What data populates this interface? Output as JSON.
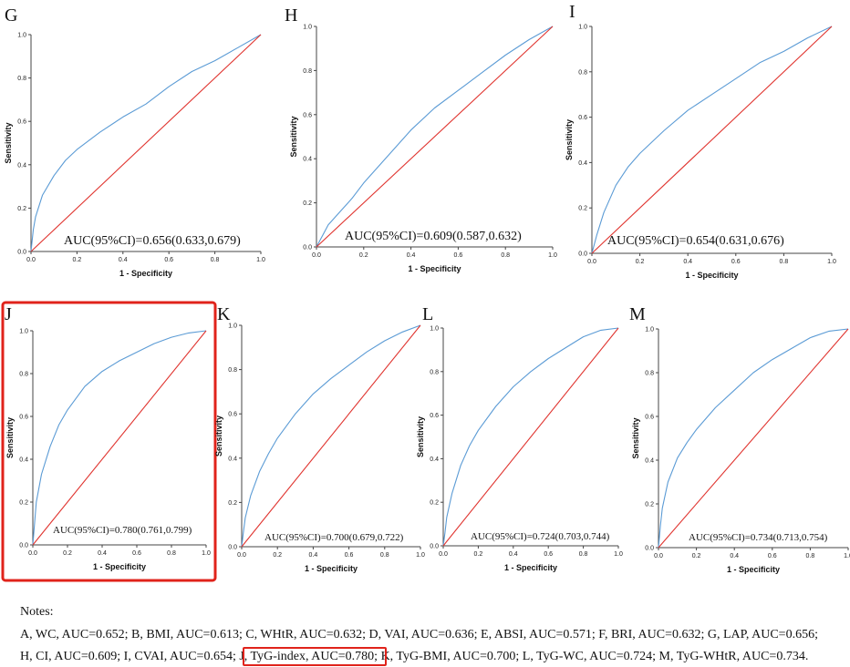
{
  "highlight_color": "#e0231b",
  "roc_color": "#5b9bd5",
  "ref_color": "#e0342f",
  "chart_data": [
    {
      "type": "line",
      "panel": "G",
      "xlabel": "1 - Specificity",
      "ylabel": "Sensitivity",
      "xlim": [
        0,
        1
      ],
      "ylim": [
        0,
        1
      ],
      "xticks": [
        "0.0",
        "0.2",
        "0.4",
        "0.6",
        "0.8",
        "1.0"
      ],
      "yticks": [
        "0.0",
        "0.2",
        "0.4",
        "0.6",
        "0.8",
        "1.0"
      ],
      "annotation": "AUC(95%CI)=0.656(0.633,0.679)",
      "auc": 0.656,
      "highlighted": false,
      "series": [
        {
          "x": [
            0,
            0.01,
            0.02,
            0.05,
            0.1,
            0.15,
            0.2,
            0.3,
            0.4,
            0.5,
            0.6,
            0.7,
            0.8,
            0.9,
            1
          ],
          "y": [
            0,
            0.1,
            0.16,
            0.26,
            0.35,
            0.42,
            0.47,
            0.55,
            0.62,
            0.68,
            0.76,
            0.83,
            0.88,
            0.94,
            1
          ]
        },
        {
          "x": [
            0,
            1
          ],
          "y": [
            0,
            1
          ]
        }
      ]
    },
    {
      "type": "line",
      "panel": "H",
      "xlabel": "1 - Specificity",
      "ylabel": "Sensitivity",
      "xlim": [
        0,
        1
      ],
      "ylim": [
        0,
        1
      ],
      "xticks": [
        "0.0",
        "0.2",
        "0.4",
        "0.6",
        "0.8",
        "1.0"
      ],
      "yticks": [
        "0.0",
        "0.2",
        "0.4",
        "0.6",
        "0.8",
        "1.0"
      ],
      "annotation": "AUC(95%CI)=0.609(0.587,0.632)",
      "auc": 0.609,
      "highlighted": false,
      "series": [
        {
          "x": [
            0,
            0.02,
            0.05,
            0.1,
            0.15,
            0.2,
            0.3,
            0.4,
            0.5,
            0.6,
            0.7,
            0.8,
            0.9,
            1
          ],
          "y": [
            0,
            0.04,
            0.1,
            0.16,
            0.22,
            0.29,
            0.41,
            0.53,
            0.63,
            0.71,
            0.79,
            0.87,
            0.94,
            1
          ]
        },
        {
          "x": [
            0,
            1
          ],
          "y": [
            0,
            1
          ]
        }
      ]
    },
    {
      "type": "line",
      "panel": "I",
      "xlabel": "1 - Specificity",
      "ylabel": "Sensitivity",
      "xlim": [
        0,
        1
      ],
      "ylim": [
        0,
        1
      ],
      "xticks": [
        "0.0",
        "0.2",
        "0.4",
        "0.6",
        "0.8",
        "1.0"
      ],
      "yticks": [
        "0.0",
        "0.2",
        "0.4",
        "0.6",
        "0.8",
        "1.0"
      ],
      "annotation": "AUC(95%CI)=0.654(0.631,0.676)",
      "auc": 0.654,
      "highlighted": false,
      "series": [
        {
          "x": [
            0,
            0.02,
            0.05,
            0.1,
            0.15,
            0.2,
            0.3,
            0.4,
            0.5,
            0.6,
            0.7,
            0.8,
            0.9,
            1
          ],
          "y": [
            0,
            0.08,
            0.18,
            0.3,
            0.38,
            0.44,
            0.54,
            0.63,
            0.7,
            0.77,
            0.84,
            0.89,
            0.95,
            1
          ]
        },
        {
          "x": [
            0,
            1
          ],
          "y": [
            0,
            1
          ]
        }
      ]
    },
    {
      "type": "line",
      "panel": "J",
      "xlabel": "1 - Specificity",
      "ylabel": "Sensitivity",
      "xlim": [
        0,
        1
      ],
      "ylim": [
        0,
        1
      ],
      "xticks": [
        "0.0",
        "0.2",
        "0.4",
        "0.6",
        "0.8",
        "1.0"
      ],
      "yticks": [
        "0.0",
        "0.2",
        "0.4",
        "0.6",
        "0.8",
        "1.0"
      ],
      "annotation": "AUC(95%CI)=0.780(0.761,0.799)",
      "auc": 0.78,
      "highlighted": true,
      "series": [
        {
          "x": [
            0,
            0.01,
            0.02,
            0.05,
            0.1,
            0.15,
            0.2,
            0.3,
            0.4,
            0.5,
            0.6,
            0.7,
            0.8,
            0.9,
            1
          ],
          "y": [
            0,
            0.1,
            0.2,
            0.33,
            0.46,
            0.56,
            0.63,
            0.74,
            0.81,
            0.86,
            0.9,
            0.94,
            0.97,
            0.99,
            1
          ]
        },
        {
          "x": [
            0,
            1
          ],
          "y": [
            0,
            1
          ]
        }
      ]
    },
    {
      "type": "line",
      "panel": "K",
      "xlabel": "1 - Specificity",
      "ylabel": "Sensitivity",
      "xlim": [
        0,
        1
      ],
      "ylim": [
        0,
        1
      ],
      "xticks": [
        "0.0",
        "0.2",
        "0.4",
        "0.6",
        "0.8",
        "1.0"
      ],
      "yticks": [
        "0.0",
        "0.2",
        "0.4",
        "0.6",
        "0.8",
        "1.0"
      ],
      "annotation": "AUC(95%CI)=0.700(0.679,0.722)",
      "auc": 0.7,
      "highlighted": false,
      "series": [
        {
          "x": [
            0,
            0.01,
            0.02,
            0.05,
            0.1,
            0.15,
            0.2,
            0.3,
            0.4,
            0.5,
            0.6,
            0.7,
            0.8,
            0.9,
            1
          ],
          "y": [
            0,
            0.07,
            0.13,
            0.23,
            0.34,
            0.42,
            0.49,
            0.6,
            0.69,
            0.76,
            0.82,
            0.88,
            0.93,
            0.97,
            1
          ]
        },
        {
          "x": [
            0,
            1
          ],
          "y": [
            0,
            1
          ]
        }
      ]
    },
    {
      "type": "line",
      "panel": "L",
      "xlabel": "1 - Specificity",
      "ylabel": "Sensitivity",
      "xlim": [
        0,
        1
      ],
      "ylim": [
        0,
        1
      ],
      "xticks": [
        "0.0",
        "0.2",
        "0.4",
        "0.6",
        "0.8",
        "1.0"
      ],
      "yticks": [
        "0.0",
        "0.2",
        "0.4",
        "0.6",
        "0.8",
        "1.0"
      ],
      "annotation": "AUC(95%CI)=0.724(0.703,0.744)",
      "auc": 0.724,
      "highlighted": false,
      "series": [
        {
          "x": [
            0,
            0.01,
            0.02,
            0.05,
            0.1,
            0.15,
            0.2,
            0.3,
            0.4,
            0.5,
            0.6,
            0.7,
            0.8,
            0.9,
            1
          ],
          "y": [
            0,
            0.06,
            0.13,
            0.24,
            0.37,
            0.46,
            0.53,
            0.64,
            0.73,
            0.8,
            0.86,
            0.91,
            0.96,
            0.99,
            1
          ]
        },
        {
          "x": [
            0,
            1
          ],
          "y": [
            0,
            1
          ]
        }
      ]
    },
    {
      "type": "line",
      "panel": "M",
      "xlabel": "1 - Specificity",
      "ylabel": "Sensitivity",
      "xlim": [
        0,
        1
      ],
      "ylim": [
        0,
        1
      ],
      "xticks": [
        "0.0",
        "0.2",
        "0.4",
        "0.6",
        "0.8",
        "1.0"
      ],
      "yticks": [
        "0.0",
        "0.2",
        "0.4",
        "0.6",
        "0.8",
        "1.0"
      ],
      "annotation": "AUC(95%CI)=0.734(0.713,0.754)",
      "auc": 0.734,
      "highlighted": false,
      "series": [
        {
          "x": [
            0,
            0.01,
            0.02,
            0.05,
            0.1,
            0.15,
            0.2,
            0.3,
            0.4,
            0.5,
            0.6,
            0.7,
            0.8,
            0.9,
            1
          ],
          "y": [
            0,
            0.1,
            0.18,
            0.3,
            0.41,
            0.48,
            0.54,
            0.64,
            0.72,
            0.8,
            0.86,
            0.91,
            0.96,
            0.99,
            1
          ]
        },
        {
          "x": [
            0,
            1
          ],
          "y": [
            0,
            1
          ]
        }
      ]
    }
  ],
  "notes": {
    "title": "Notes:",
    "line1": "A, WC, AUC=0.652; B, BMI, AUC=0.613; C, WHtR, AUC=0.632; D, VAI, AUC=0.636; E, ABSI, AUC=0.571; F, BRI, AUC=0.632; G, LAP, AUC=0.656;",
    "line2_before": "H, CI, AUC=0.609; I, CVAI, AUC=0.654; ",
    "line2_highlight": "J, TyG-index, AUC=0.780;",
    "line2_after": " K, TyG-BMI, AUC=0.700; L, TyG-WC, AUC=0.724; M, TyG-WHtR, AUC=0.734."
  }
}
